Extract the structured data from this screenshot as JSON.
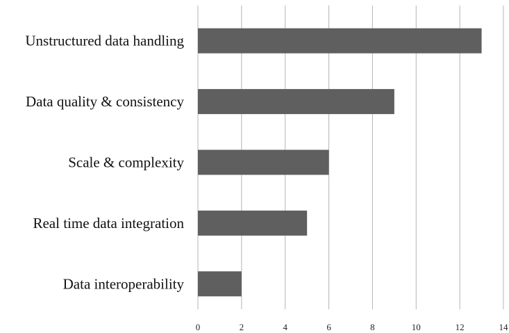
{
  "chart_data": {
    "type": "bar",
    "orientation": "horizontal",
    "title": "",
    "xlabel": "",
    "ylabel": "",
    "categories": [
      "Unstructured data handling",
      "Data quality & consistency",
      "Scale & complexity",
      "Real time data integration",
      "Data interoperability"
    ],
    "values": [
      13,
      9,
      6,
      5,
      2
    ],
    "xlim": [
      0,
      14
    ],
    "xticks": [
      "0",
      "2",
      "4",
      "6",
      "8",
      "10",
      "12",
      "14"
    ],
    "grid": "vertical",
    "legend": "none",
    "bar_color": "#5f5f5f"
  }
}
